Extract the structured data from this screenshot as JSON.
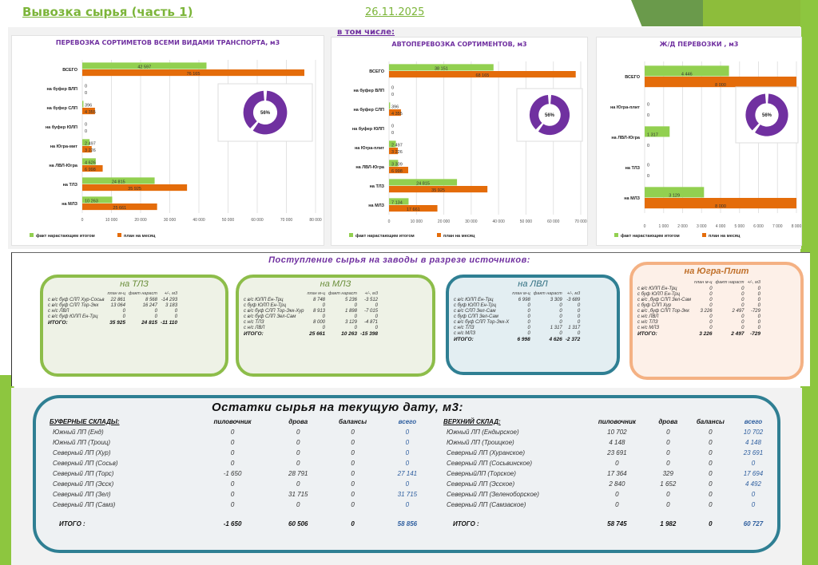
{
  "header": {
    "title": "Вывозка сырья (часть 1)",
    "date": "26.11.2025",
    "including_label": "в том числе:"
  },
  "colors": {
    "fact": "#92d050",
    "plan": "#e46c0a",
    "donut": "#7030a0",
    "title_purple": "#7030a0",
    "accent_green": "#8dc63f"
  },
  "chart_data": [
    {
      "type": "bar",
      "orientation": "horizontal",
      "title": "ПЕРЕВОЗКА СОРТИМЕТОВ ВСЕМИ ВИДАМИ ТРАНСПОРТА, м3",
      "categories": [
        "ВСЕГО",
        "на буфер ВЛП",
        "на буфер СЛП",
        "на буфер ЮЛП",
        "на Югра-мит",
        "на ЛВЛ-Югра",
        "на ТЛЗ",
        "на МЛЗ"
      ],
      "series": [
        {
          "name": "факт нарастающим итогом",
          "values": [
            42597,
            0,
            396,
            0,
            2497,
            4626,
            24815,
            10263
          ],
          "labels": [
            "42 597",
            "0",
            "396",
            "0",
            "2 497",
            "4 626",
            "24 815",
            "10 263"
          ]
        },
        {
          "name": "план на месяц",
          "values": [
            76165,
            0,
            4355,
            0,
            3226,
            6998,
            35925,
            25661
          ],
          "labels": [
            "76 165",
            "0",
            "4 355",
            "0",
            "3 226",
            "6 998",
            "35 925",
            "25 661"
          ]
        }
      ],
      "xlim": [
        0,
        80000
      ],
      "xticks": [
        "0",
        "10 000",
        "20 000",
        "30 000",
        "40 000",
        "50 000",
        "60 000",
        "70 000",
        "80 000"
      ],
      "grid": true,
      "legend": "bottom-left",
      "inset_donut": {
        "percent": 56,
        "label": "56%"
      }
    },
    {
      "type": "bar",
      "orientation": "horizontal",
      "title": "АВТОПЕРЕВОЗКА СОРТИМЕНТОВ, м3",
      "categories": [
        "ВСЕГО",
        "на буфер ВЛП",
        "на буфер СЛП",
        "на буфер ЮЛП",
        "на Югра-плит",
        "на ЛВЛ-Югра",
        "на ТЛЗ",
        "на МЛЗ"
      ],
      "series": [
        {
          "name": "факт нарастающим итогом",
          "values": [
            38151,
            0,
            396,
            0,
            2497,
            3309,
            24815,
            7134
          ],
          "labels": [
            "38 151",
            "0",
            "396",
            "0",
            "2 497",
            "3 309",
            "24 815",
            "7 134"
          ]
        },
        {
          "name": "план на месяц",
          "values": [
            68165,
            0,
            4355,
            0,
            3226,
            6998,
            35925,
            17661
          ],
          "labels": [
            "68 165",
            "0",
            "4 355",
            "0",
            "3 226",
            "6 998",
            "35 925",
            "17 661"
          ]
        }
      ],
      "xlim": [
        0,
        70000
      ],
      "xticks": [
        "0",
        "10 000",
        "20 000",
        "30 000",
        "40 000",
        "50 000",
        "60 000",
        "70 000"
      ],
      "grid": true,
      "legend": "bottom-left",
      "inset_donut": {
        "percent": 56,
        "label": "56%"
      }
    },
    {
      "type": "bar",
      "orientation": "horizontal",
      "title": "Ж/Д ПЕРЕВОЗКИ , м3",
      "categories": [
        "ВСЕГО",
        "на Югра-плит",
        "на ЛВЛ-Югра",
        "на ТЛЗ",
        "на МЛЗ"
      ],
      "series": [
        {
          "name": "факт нарастающим итогом",
          "values": [
            4446,
            0,
            1317,
            0,
            3129
          ],
          "labels": [
            "4 446",
            "0",
            "1 317",
            "0",
            "3 129"
          ]
        },
        {
          "name": "план на месяц",
          "values": [
            8000,
            0,
            0,
            0,
            8000
          ],
          "labels": [
            "8 000",
            "0",
            "0",
            "0",
            "8 000"
          ]
        }
      ],
      "xlim": [
        0,
        8000
      ],
      "xticks": [
        "0",
        "1 000",
        "2 000",
        "3 000",
        "4 000",
        "5 000",
        "6 000",
        "7 000",
        "8 000"
      ],
      "grid": true,
      "legend": "bottom-left",
      "inset_donut": {
        "percent": 56,
        "label": "56%"
      }
    }
  ],
  "sources": {
    "title": "Поступление сырья на заводы в разрезе источников:",
    "boxes": [
      {
        "title": "на ТЛЗ",
        "headers": [
          "план м-ц",
          "факт нараст",
          "+/-, м3"
        ],
        "rows": [
          [
            "с в/с буф СЛП Хур-Сосьв",
            "22 861",
            "8 568",
            "-14 293"
          ],
          [
            "с в/с буф СЛП Тор-Экк",
            "13 064",
            "16 247",
            "3 183"
          ],
          [
            "с н/с ЛВЛ",
            "0",
            "0",
            "0"
          ],
          [
            "с в/с буф ЮЛП Ен-Трц",
            "0",
            "0",
            "0"
          ]
        ],
        "total": [
          "ИТОГО:",
          "35 925",
          "24 815",
          "-11 110"
        ]
      },
      {
        "title": "на МЛЗ",
        "headers": [
          "план м-ц",
          "факт нараст",
          "+/-, м3"
        ],
        "rows": [
          [
            "с в/с ЮЛП Ен-Трц",
            "8 748",
            "5 236",
            "-3 512"
          ],
          [
            "с буф ЮЛП Ен-Трц",
            "0",
            "0",
            "0"
          ],
          [
            "с в/с буф СЛП Тор-Экк-Хур",
            "8 913",
            "1 898",
            "-7 015"
          ],
          [
            "с в/с буф СЛП Зел-Сам",
            "0",
            "0",
            "0"
          ],
          [
            "с н/с ТЛЗ",
            "8 000",
            "3 129",
            "-4 871"
          ],
          [
            "с н/с ЛВЛ",
            "0",
            "0",
            "0"
          ]
        ],
        "total": [
          "ИТОГО:",
          "25 661",
          "10 263",
          "-15 398"
        ]
      },
      {
        "title": "на ЛВЛ",
        "headers": [
          "план м-ц",
          "факт нараст",
          "+/-, м3"
        ],
        "rows": [
          [
            "с в/с ЮЛП Ен-Трц",
            "6 998",
            "3 309",
            "-3 689"
          ],
          [
            "с буф ЮЛП Ен-Трц",
            "0",
            "0",
            "0"
          ],
          [
            "с в/с СЛП Зел-Сам",
            "0",
            "0",
            "0"
          ],
          [
            "с буф СЛП Зел-Сам",
            "0",
            "0",
            "0"
          ],
          [
            "с в/с буф СЛП Тор-Экк-Х",
            "0",
            "0",
            "0"
          ],
          [
            "с н/с ТЛЗ",
            "0",
            "1 317",
            "1 317"
          ],
          [
            "с н/с МЛЗ",
            "0",
            "0",
            "0"
          ]
        ],
        "total": [
          "ИТОГО:",
          "6 998",
          "4 626",
          "-2 372"
        ]
      },
      {
        "title": "на Югра-Плит",
        "headers": [
          "план м-ц",
          "факт нараст",
          "+/-, м3"
        ],
        "rows": [
          [
            "с в/с ЮЛП Ен-Трц",
            "0",
            "0",
            "0"
          ],
          [
            "с буф ЮЛП Ен-Трц",
            "0",
            "0",
            "0"
          ],
          [
            "с в/с ,буф СЛП Зел-Сам",
            "0",
            "0",
            "0"
          ],
          [
            "с буф СЛП Хур",
            "0",
            "0",
            "0"
          ],
          [
            "с в/с ,буф СЛП Тор-Экк",
            "3 226",
            "2 497",
            "-729"
          ],
          [
            "с н/с ЛВЛ",
            "0",
            "0",
            "0"
          ],
          [
            "с н/с ТЛЗ",
            "0",
            "0",
            "0"
          ],
          [
            "с н/с МЛЗ",
            "0",
            "0",
            "0"
          ]
        ],
        "total": [
          "ИТОГО:",
          "3 226",
          "2 497",
          "-729"
        ]
      }
    ]
  },
  "remains": {
    "title": "Остатки сырья на текущую дату, м3:",
    "buffer": {
      "section": "БУФЕРНЫЕ СКЛАДЫ:",
      "headers": [
        "пиловочник",
        "дрова",
        "балансы",
        "всего"
      ],
      "rows": [
        [
          "Южный ЛП (Енд)",
          "0",
          "0",
          "0",
          "0"
        ],
        [
          "Южный ЛП (Троиц)",
          "0",
          "0",
          "0",
          "0"
        ],
        [
          "Северный ЛП (Хур)",
          "0",
          "0",
          "0",
          "0"
        ],
        [
          "Северный ЛП (Сосьв)",
          "0",
          "0",
          "0",
          "0"
        ],
        [
          "Северный ЛП (Торс)",
          "-1 650",
          "28 791",
          "0",
          "27 141"
        ],
        [
          "Северный ЛП (Эсск)",
          "0",
          "0",
          "0",
          "0"
        ],
        [
          "Северный ЛП (Зел)",
          "0",
          "31 715",
          "0",
          "31 715"
        ],
        [
          "Северный ЛП (Самз)",
          "0",
          "0",
          "0",
          "0"
        ]
      ],
      "total": [
        "ИТОГО :",
        "-1 650",
        "60 506",
        "0",
        "58 856"
      ]
    },
    "upper": {
      "section": "ВЕРХНИЙ СКЛАД:",
      "headers": [
        "пиловочник",
        "дрова",
        "балансы",
        "всего"
      ],
      "rows": [
        [
          "Южный ЛП (Ендырское)",
          "10 702",
          "0",
          "0",
          "10 702"
        ],
        [
          "Южный ЛП (Троицкое)",
          "4 148",
          "0",
          "0",
          "4 148"
        ],
        [
          "Северный ЛП (Хуранское)",
          "23 691",
          "0",
          "0",
          "23 691"
        ],
        [
          "Северный ЛП (Сосьвинское)",
          "0",
          "0",
          "0",
          "0"
        ],
        [
          "СеверныйЛП (Торское)",
          "17 364",
          "329",
          "0",
          "17 694"
        ],
        [
          "Северный ЛП (Эсское)",
          "2 840",
          "1 652",
          "0",
          "4 492"
        ],
        [
          "Северный ЛП (Зеленоборское)",
          "0",
          "0",
          "0",
          "0"
        ],
        [
          "Северный ЛП (Самзаское)",
          "0",
          "0",
          "0",
          "0"
        ]
      ],
      "total": [
        "ИТОГО :",
        "58 745",
        "1 982",
        "0",
        "60 727"
      ]
    }
  }
}
